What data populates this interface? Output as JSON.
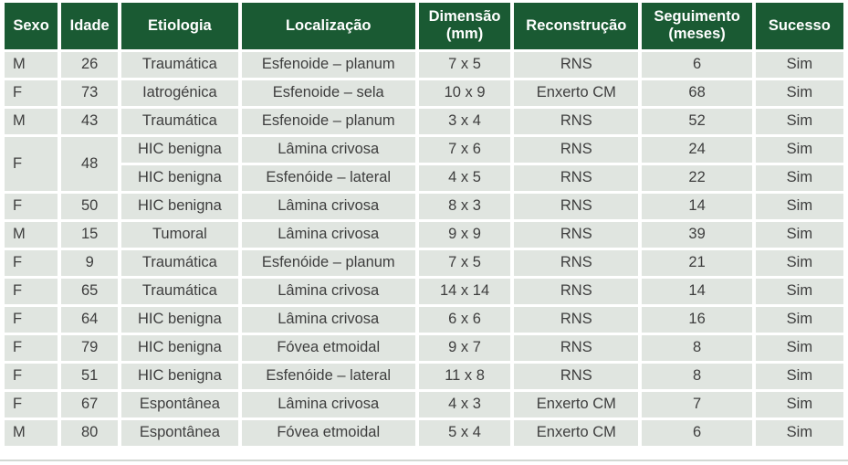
{
  "colors": {
    "header_bg": "#1a5a33",
    "header_text": "#ffffff",
    "cell_bg": "#e0e5e0",
    "cell_text": "#3e3e3e",
    "separator": "#ffffff",
    "bottom_rule": "#d3d8d3"
  },
  "chart_data": {
    "type": "table",
    "columns": [
      "Sexo",
      "Idade",
      "Etiologia",
      "Localização",
      "Dimensão (mm)",
      "Reconstrução",
      "Seguimento (meses)",
      "Sucesso"
    ],
    "merged_cells": [
      {
        "rows": "3-4",
        "columns": [
          "Sexo",
          "Idade"
        ],
        "values": [
          "F",
          "48"
        ]
      }
    ],
    "rows": [
      {
        "sexo": "M",
        "idade": "26",
        "etiologia": "Traumática",
        "localizacao": "Esfenoide – planum",
        "dimensao": "7 x 5",
        "reconstrucao": "RNS",
        "seguimento": "6",
        "sucesso": "Sim"
      },
      {
        "sexo": "F",
        "idade": "73",
        "etiologia": "Iatrogénica",
        "localizacao": "Esfenoide – sela",
        "dimensao": "10 x 9",
        "reconstrucao": "Enxerto CM",
        "seguimento": "68",
        "sucesso": "Sim"
      },
      {
        "sexo": "M",
        "idade": "43",
        "etiologia": "Traumática",
        "localizacao": "Esfenoide – planum",
        "dimensao": "3 x 4",
        "reconstrucao": "RNS",
        "seguimento": "52",
        "sucesso": "Sim"
      },
      {
        "sexo": "F",
        "idade": "48",
        "etiologia": "HIC benigna",
        "localizacao": "Lâmina crivosa",
        "dimensao": "7 x 6",
        "reconstrucao": "RNS",
        "seguimento": "24",
        "sucesso": "Sim"
      },
      {
        "etiologia": "HIC benigna",
        "localizacao": "Esfenóide – lateral",
        "dimensao": "4 x 5",
        "reconstrucao": "RNS",
        "seguimento": "22",
        "sucesso": "Sim"
      },
      {
        "sexo": "F",
        "idade": "50",
        "etiologia": "HIC benigna",
        "localizacao": "Lâmina crivosa",
        "dimensao": "8 x 3",
        "reconstrucao": "RNS",
        "seguimento": "14",
        "sucesso": "Sim"
      },
      {
        "sexo": "M",
        "idade": "15",
        "etiologia": "Tumoral",
        "localizacao": "Lâmina crivosa",
        "dimensao": "9 x 9",
        "reconstrucao": "RNS",
        "seguimento": "39",
        "sucesso": "Sim"
      },
      {
        "sexo": "F",
        "idade": "9",
        "etiologia": "Traumática",
        "localizacao": "Esfenóide – planum",
        "dimensao": "7 x 5",
        "reconstrucao": "RNS",
        "seguimento": "21",
        "sucesso": "Sim"
      },
      {
        "sexo": "F",
        "idade": "65",
        "etiologia": "Traumática",
        "localizacao": "Lâmina crivosa",
        "dimensao": "14 x 14",
        "reconstrucao": "RNS",
        "seguimento": "14",
        "sucesso": "Sim"
      },
      {
        "sexo": "F",
        "idade": "64",
        "etiologia": "HIC benigna",
        "localizacao": "Lâmina crivosa",
        "dimensao": "6 x 6",
        "reconstrucao": "RNS",
        "seguimento": "16",
        "sucesso": "Sim"
      },
      {
        "sexo": "F",
        "idade": "79",
        "etiologia": "HIC benigna",
        "localizacao": "Fóvea etmoidal",
        "dimensao": "9 x 7",
        "reconstrucao": "RNS",
        "seguimento": "8",
        "sucesso": "Sim"
      },
      {
        "sexo": "F",
        "idade": "51",
        "etiologia": "HIC benigna",
        "localizacao": "Esfenóide – lateral",
        "dimensao": "11 x 8",
        "reconstrucao": "RNS",
        "seguimento": "8",
        "sucesso": "Sim"
      },
      {
        "sexo": "F",
        "idade": "67",
        "etiologia": "Espontânea",
        "localizacao": "Lâmina crivosa",
        "dimensao": "4 x 3",
        "reconstrucao": "Enxerto CM",
        "seguimento": "7",
        "sucesso": "Sim"
      },
      {
        "sexo": "M",
        "idade": "80",
        "etiologia": "Espontânea",
        "localizacao": "Fóvea etmoidal",
        "dimensao": "5 x 4",
        "reconstrucao": "Enxerto CM",
        "seguimento": "6",
        "sucesso": "Sim"
      }
    ]
  }
}
